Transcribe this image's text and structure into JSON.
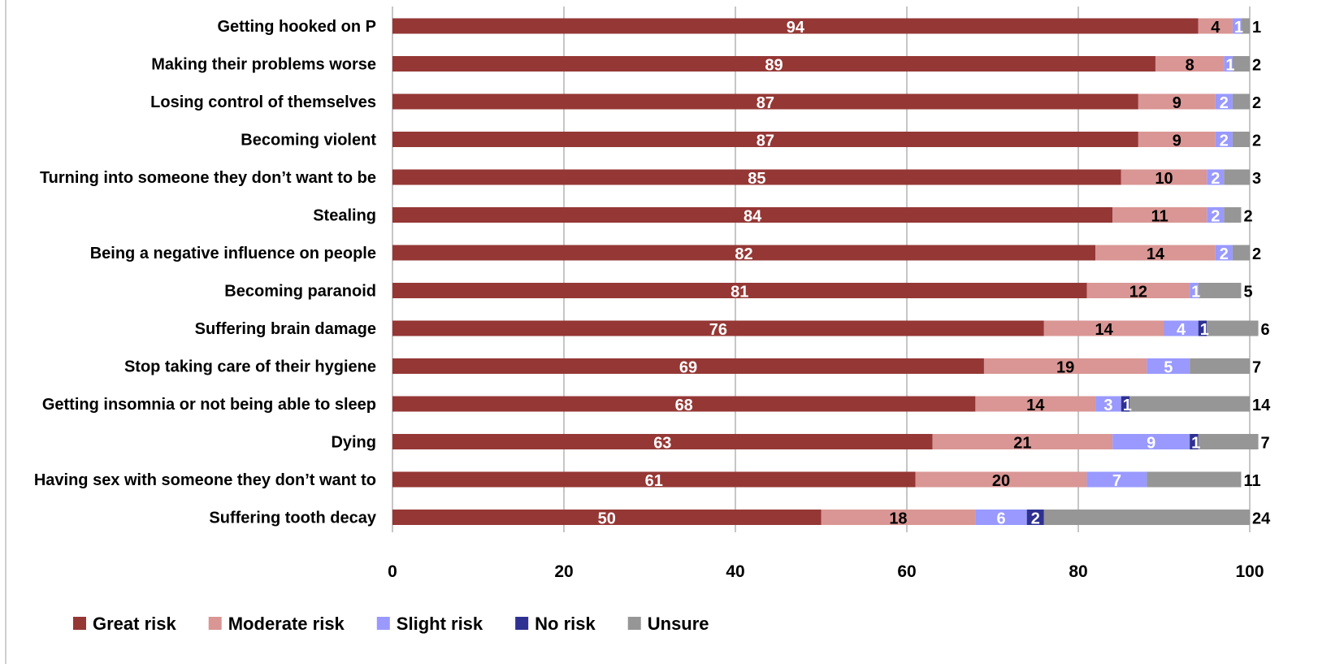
{
  "chart_data": {
    "type": "bar",
    "orientation": "horizontal",
    "stacked": true,
    "title": "",
    "xlabel": "",
    "ylabel": "",
    "xlim": [
      0,
      100
    ],
    "x_ticks": [
      "0",
      "20",
      "40",
      "60",
      "80",
      "100"
    ],
    "grid": true,
    "legend_position": "bottom",
    "categories": [
      "Getting hooked on P",
      "Making their problems worse",
      "Losing control of themselves",
      "Becoming violent",
      "Turning into someone they don’t want to be",
      "Stealing",
      "Being a negative influence on people",
      "Becoming paranoid",
      "Suffering brain damage",
      "Stop taking care of their hygiene",
      "Getting insomnia or not being able to sleep",
      "Dying",
      "Having sex with someone they don’t want to",
      "Suffering tooth decay"
    ],
    "series": [
      {
        "name": "Great risk",
        "color": "#953735",
        "label_color": "#ffffff",
        "values": [
          94,
          89,
          87,
          87,
          85,
          84,
          82,
          81,
          76,
          69,
          68,
          63,
          61,
          50
        ]
      },
      {
        "name": "Moderate risk",
        "color": "#D99694",
        "label_color": "#000000",
        "values": [
          4,
          8,
          9,
          9,
          10,
          11,
          14,
          12,
          14,
          19,
          14,
          21,
          20,
          18
        ]
      },
      {
        "name": "Slight risk",
        "color": "#9999FF",
        "label_color": "#ffffff",
        "values": [
          1,
          1,
          2,
          2,
          2,
          2,
          2,
          1,
          4,
          5,
          3,
          9,
          7,
          6
        ]
      },
      {
        "name": "No risk",
        "color": "#2E3192",
        "label_color": "#ffffff",
        "values": [
          0,
          0,
          0,
          0,
          0,
          0,
          0,
          0,
          1,
          0,
          1,
          1,
          0,
          2
        ]
      },
      {
        "name": "Unsure",
        "color": "#969696",
        "label_color": "#000000",
        "values": [
          1,
          2,
          2,
          2,
          3,
          2,
          2,
          5,
          6,
          7,
          14,
          7,
          11,
          24
        ]
      }
    ]
  }
}
